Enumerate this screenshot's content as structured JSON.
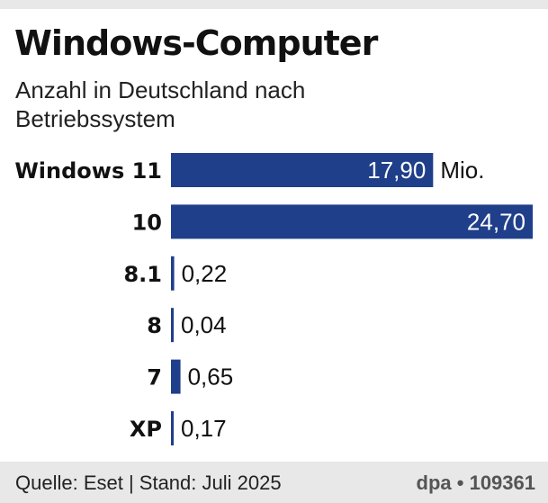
{
  "chart_data": {
    "type": "bar",
    "orientation": "horizontal",
    "title": "Windows-Computer",
    "subtitle": "Anzahl in Deutschland nach Betriebssystem",
    "categories": [
      "Windows 11",
      "10",
      "8.1",
      "8",
      "7",
      "XP"
    ],
    "values": [
      17.9,
      24.7,
      0.22,
      0.04,
      0.65,
      0.17
    ],
    "value_labels": [
      "17,90",
      "24,70",
      "0,22",
      "0,04",
      "0,65",
      "0,17"
    ],
    "unit": "Mio.",
    "xlim": [
      0,
      24.7
    ],
    "grid": false,
    "colors": {
      "bar": "#1f3f8a",
      "label_inside": "#ffffff",
      "label_outside": "#111111"
    }
  },
  "footer": {
    "source": "Quelle: Eset | Stand: Juli 2025",
    "credit": "dpa • 109361"
  }
}
